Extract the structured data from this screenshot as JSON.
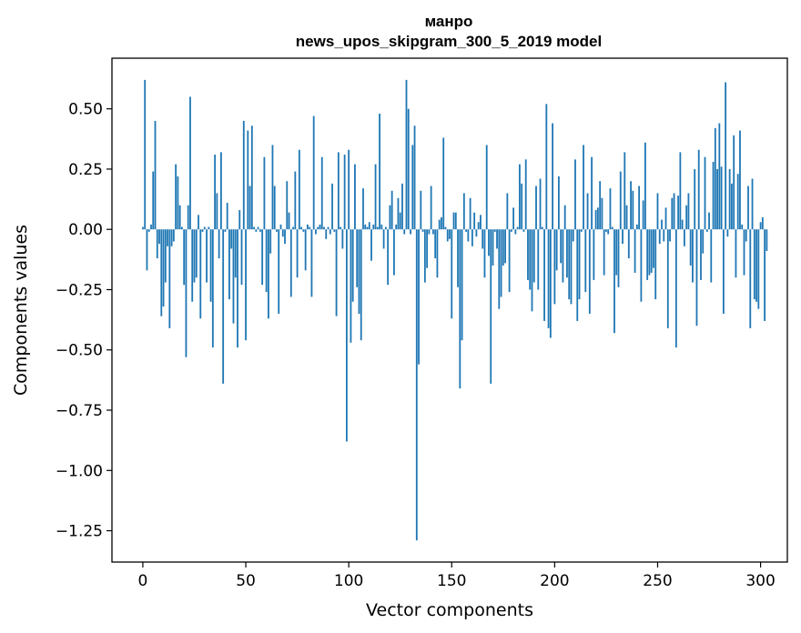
{
  "chart_data": {
    "type": "bar",
    "title_lines": [
      "манро",
      "news_upos_skipgram_300_5_2019 model"
    ],
    "xlabel": "Vector components",
    "ylabel": "Components values",
    "xlim": [
      -15,
      313
    ],
    "ylim": [
      -1.38,
      0.71
    ],
    "xticks": [
      0,
      50,
      100,
      150,
      200,
      250,
      300
    ],
    "yticks": [
      0.5,
      0.25,
      0.0,
      -0.25,
      -0.5,
      -0.75,
      -1.0,
      -1.25
    ],
    "ytick_labels": [
      "0.50",
      "0.25",
      "0.00",
      "−0.25",
      "−0.50",
      "−0.75",
      "−1.00",
      "−1.25"
    ],
    "bar_color": "#1f77b4",
    "values": [
      0.01,
      0.62,
      -0.17,
      -0.01,
      0.02,
      0.24,
      0.45,
      -0.12,
      -0.06,
      -0.36,
      -0.32,
      -0.22,
      -0.07,
      -0.41,
      -0.07,
      -0.05,
      0.27,
      0.22,
      0.1,
      0.01,
      -0.23,
      -0.53,
      0.1,
      0.55,
      -0.3,
      -0.22,
      -0.2,
      0.06,
      -0.37,
      -0.01,
      0.01,
      -0.22,
      0.01,
      -0.3,
      -0.49,
      0.31,
      0.15,
      -0.12,
      0.32,
      -0.64,
      -0.01,
      0.11,
      -0.29,
      -0.08,
      -0.39,
      -0.2,
      -0.49,
      0.08,
      -0.23,
      0.45,
      -0.46,
      0.41,
      0.18,
      0.43,
      0.01,
      -0.01,
      0.01,
      -0.01,
      -0.23,
      0.3,
      -0.26,
      -0.37,
      -0.1,
      0.35,
      0.18,
      -0.01,
      -0.35,
      0.02,
      -0.03,
      -0.06,
      0.2,
      0.07,
      -0.28,
      0.01,
      0.24,
      -0.2,
      0.33,
      0.01,
      -0.01,
      -0.17,
      0.02,
      0.01,
      -0.28,
      0.47,
      -0.02,
      0.01,
      0.02,
      0.3,
      0.01,
      -0.04,
      0.01,
      -0.02,
      0.19,
      -0.01,
      -0.36,
      0.32,
      0.01,
      -0.08,
      0.31,
      -0.88,
      0.33,
      -0.47,
      -0.3,
      0.27,
      -0.24,
      -0.35,
      -0.46,
      0.17,
      0.02,
      0.01,
      0.03,
      -0.13,
      0.02,
      0.27,
      0.01,
      0.48,
      0.02,
      -0.08,
      0.01,
      -0.23,
      0.1,
      0.16,
      -0.19,
      0.02,
      0.13,
      0.07,
      0.19,
      -0.02,
      0.62,
      0.5,
      -0.02,
      0.35,
      0.43,
      -1.29,
      -0.56,
      0.16,
      -0.01,
      -0.22,
      -0.16,
      -0.02,
      0.18,
      -0.02,
      -0.12,
      -0.2,
      0.04,
      0.05,
      0.38,
      0.01,
      -0.05,
      -0.04,
      -0.37,
      0.07,
      0.07,
      -0.24,
      -0.66,
      -0.46,
      0.15,
      -0.01,
      -0.05,
      0.13,
      -0.07,
      0.07,
      -0.03,
      0.03,
      0.06,
      -0.08,
      -0.2,
      0.35,
      -0.11,
      -0.64,
      -0.15,
      -0.01,
      -0.08,
      -0.33,
      -0.28,
      -0.15,
      -0.14,
      0.15,
      -0.26,
      -0.01,
      0.09,
      -0.02,
      0.01,
      0.27,
      0.19,
      -0.01,
      0.29,
      -0.21,
      -0.25,
      -0.34,
      -0.22,
      0.18,
      -0.25,
      0.21,
      0.01,
      -0.38,
      0.52,
      -0.41,
      -0.45,
      0.44,
      -0.31,
      -0.17,
      0.22,
      -0.14,
      -0.22,
      0.1,
      -0.2,
      -0.29,
      -0.31,
      -0.05,
      0.29,
      -0.38,
      -0.29,
      -0.01,
      0.35,
      -0.26,
      0.15,
      -0.35,
      0.3,
      -0.21,
      0.08,
      0.09,
      0.2,
      0.13,
      -0.19,
      -0.01,
      -0.02,
      0.17,
      0.01,
      -0.43,
      -0.19,
      -0.24,
      0.24,
      -0.06,
      0.32,
      0.1,
      -0.12,
      0.2,
      0.16,
      -0.18,
      0.02,
      0.18,
      -0.3,
      0.12,
      0.36,
      -0.21,
      -0.19,
      -0.18,
      -0.16,
      -0.29,
      0.15,
      -0.06,
      0.04,
      -0.05,
      0.09,
      -0.41,
      -0.05,
      0.13,
      0.15,
      -0.49,
      0.14,
      0.32,
      0.04,
      -0.07,
      0.1,
      0.15,
      -0.15,
      -0.22,
      0.25,
      -0.4,
      0.33,
      -0.21,
      -0.1,
      0.3,
      -0.01,
      0.07,
      -0.22,
      0.28,
      0.42,
      0.25,
      0.44,
      0.26,
      -0.35,
      0.61,
      -0.03,
      0.25,
      0.19,
      0.39,
      -0.2,
      0.23,
      0.41,
      0.02,
      -0.19,
      -0.05,
      0.18,
      -0.41,
      0.21,
      -0.29,
      -0.3,
      -0.33,
      0.03,
      0.05,
      -0.38,
      -0.09
    ]
  }
}
